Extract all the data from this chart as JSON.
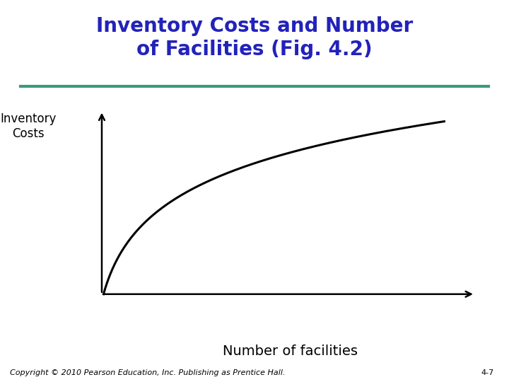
{
  "title": "Inventory Costs and Number\nof Facilities (Fig. 4.2)",
  "title_color": "#2222BB",
  "title_fontsize": 20,
  "title_fontweight": "bold",
  "separator_color": "#3A9A7A",
  "separator_linewidth": 3,
  "ylabel": "Inventory\nCosts",
  "xlabel": "Number of facilities",
  "xlabel_fontsize": 14,
  "ylabel_fontsize": 12,
  "curve_color": "#000000",
  "curve_linewidth": 2.2,
  "background_color": "#FFFFFF",
  "copyright_text": "Copyright © 2010 Pearson Education, Inc. Publishing as Prentice Hall.",
  "page_label": "4-7",
  "copyright_fontsize": 8
}
